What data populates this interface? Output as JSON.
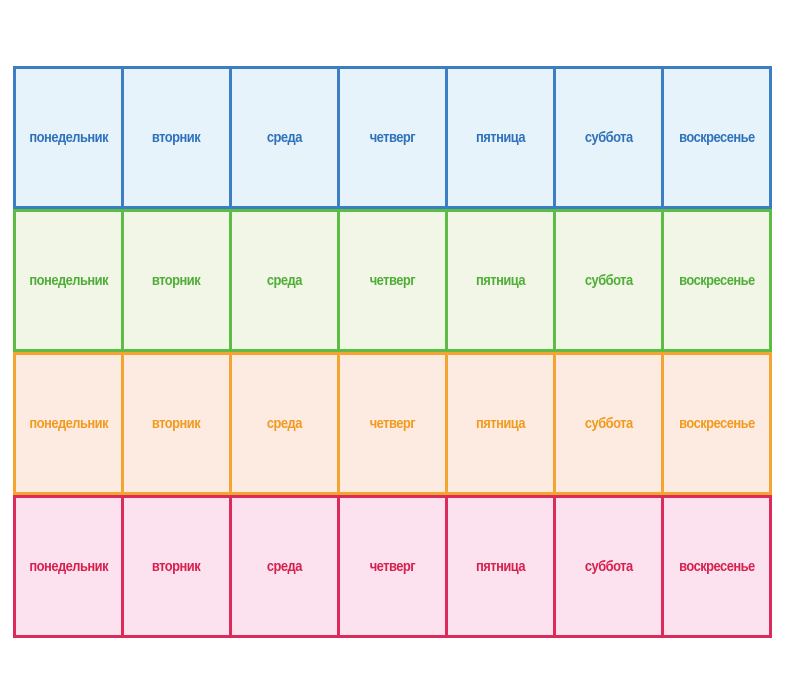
{
  "days": [
    "понедельник",
    "вторник",
    "среда",
    "четверг",
    "пятница",
    "суббота",
    "воскресенье"
  ],
  "rows": [
    {
      "name": "blue",
      "border": "#3c7ec4",
      "fill": "#e6f3fb",
      "text": "#2f72bb"
    },
    {
      "name": "green",
      "border": "#5cbc43",
      "fill": "#f1f6e6",
      "text": "#4fae37"
    },
    {
      "name": "orange",
      "border": "#f4a431",
      "fill": "#fdebe1",
      "text": "#f19a1e"
    },
    {
      "name": "pink",
      "border": "#dd2a5d",
      "fill": "#fbe2ee",
      "text": "#d8204f"
    }
  ]
}
